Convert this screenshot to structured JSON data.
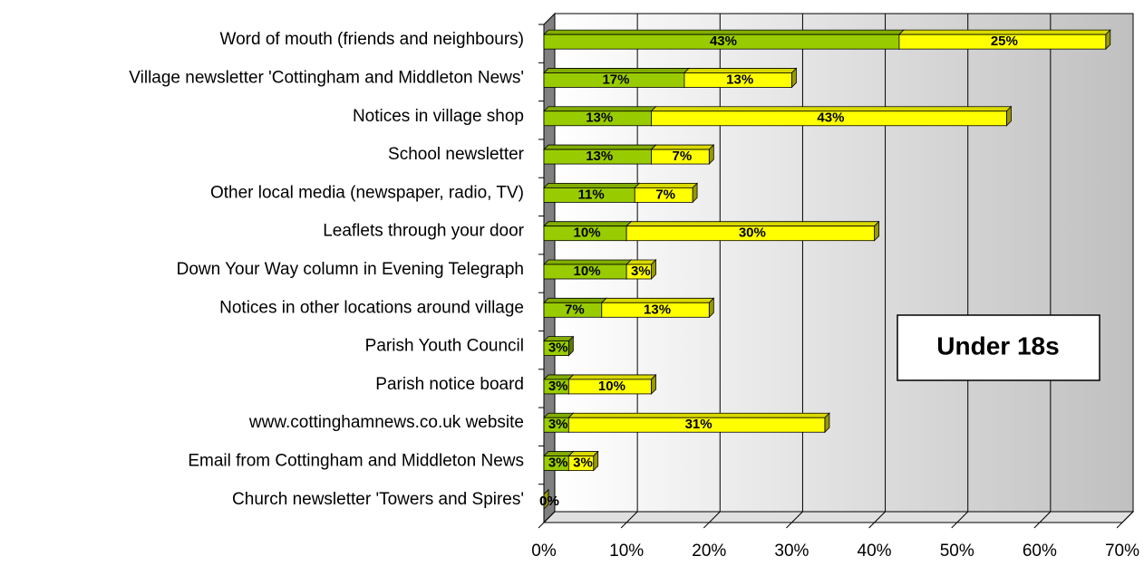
{
  "chart_data": {
    "type": "bar",
    "orientation": "horizontal",
    "stacked": true,
    "three_d": true,
    "annotation": "Under 18s",
    "categories": [
      "Word of mouth (friends and neighbours)",
      "Village newsletter 'Cottingham and Middleton News'",
      "Notices in village shop",
      "School newsletter",
      "Other local media (newspaper, radio, TV)",
      "Leaflets through your door",
      "Down Your Way column in Evening Telegraph",
      "Notices in other locations around village",
      "Parish Youth Council",
      "Parish notice board",
      "www.cottinghamnews.co.uk website",
      "Email from Cottingham and Middleton News",
      "Church newsletter 'Towers and Spires'"
    ],
    "series": [
      {
        "color": "#99cc00",
        "values": [
          43,
          17,
          13,
          13,
          11,
          10,
          10,
          7,
          3,
          3,
          3,
          3,
          0
        ],
        "value_labels": [
          "43%",
          "17%",
          "13%",
          "13%",
          "11%",
          "10%",
          "10%",
          "7%",
          "3%",
          "3%",
          "3%",
          "3%",
          "0%"
        ]
      },
      {
        "color": "#ffff00",
        "values": [
          25,
          13,
          43,
          7,
          7,
          30,
          3,
          13,
          null,
          10,
          31,
          3,
          0
        ],
        "value_labels": [
          "25%",
          "13%",
          "43%",
          "7%",
          "7%",
          "30%",
          "3%",
          "13%",
          null,
          "10%",
          "31%",
          "3%",
          "0%"
        ]
      }
    ],
    "xlim": [
      0,
      70
    ],
    "xticks": [
      {
        "value": 0,
        "label": "0%"
      },
      {
        "value": 10,
        "label": "10%"
      },
      {
        "value": 20,
        "label": "20%"
      },
      {
        "value": 30,
        "label": "30%"
      },
      {
        "value": 40,
        "label": "40%"
      },
      {
        "value": 50,
        "label": "50%"
      },
      {
        "value": 60,
        "label": "60%"
      },
      {
        "value": 70,
        "label": "70%"
      }
    ],
    "grid": true
  }
}
